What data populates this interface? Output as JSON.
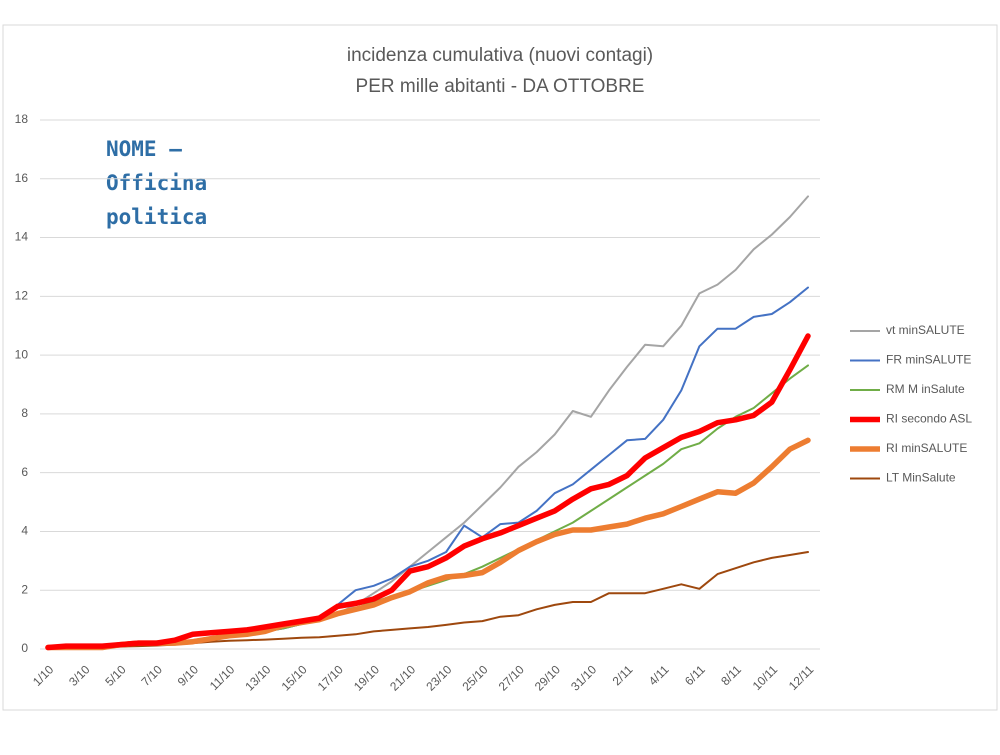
{
  "chart_data": {
    "type": "line",
    "title": [
      "incidenza cumulativa (nuovi contagi)",
      "PER mille  abitanti - DA OTTOBRE"
    ],
    "annotation": [
      "NOME  –",
      "Officina",
      "politica"
    ],
    "categories": [
      "1/10",
      null,
      "3/10",
      null,
      "5/10",
      null,
      "7/10",
      null,
      "9/10",
      null,
      "11/10",
      null,
      "13/10",
      null,
      "15/10",
      null,
      "17/10",
      null,
      "19/10",
      null,
      "21/10",
      null,
      "23/10",
      null,
      "25/10",
      null,
      "27/10",
      null,
      "29/10",
      null,
      "31/10",
      null,
      "2/11",
      null,
      "4/11",
      null,
      "6/11",
      null,
      "8/11",
      null,
      "10/11",
      null,
      "12/11"
    ],
    "series": [
      {
        "name": "vt minSALUTE",
        "color": "#a5a5a5",
        "values": [
          0.05,
          0.1,
          0.1,
          0.1,
          0.15,
          0.2,
          0.2,
          0.25,
          0.3,
          0.4,
          0.45,
          0.5,
          0.6,
          0.7,
          0.85,
          1.0,
          1.2,
          1.5,
          1.9,
          2.3,
          2.8,
          3.3,
          3.8,
          4.3,
          4.9,
          5.5,
          6.2,
          6.7,
          7.3,
          8.1,
          7.9,
          8.8,
          9.6,
          10.35,
          10.3,
          11.0,
          12.1,
          12.4,
          12.9,
          13.6,
          14.1,
          14.7,
          15.4
        ]
      },
      {
        "name": "FR minSALUTE",
        "color": "#4472c4",
        "values": [
          0.05,
          0.1,
          0.1,
          0.1,
          0.15,
          0.2,
          0.2,
          0.25,
          0.3,
          0.4,
          0.45,
          0.5,
          0.6,
          0.7,
          0.85,
          1.0,
          1.5,
          2.0,
          2.15,
          2.4,
          2.8,
          3.0,
          3.3,
          4.2,
          3.8,
          4.25,
          4.3,
          4.7,
          5.3,
          5.6,
          6.1,
          6.6,
          7.1,
          7.15,
          7.8,
          8.8,
          10.3,
          10.9,
          10.9,
          11.3,
          11.4,
          11.8,
          12.3
        ]
      },
      {
        "name": "RM M inSalute",
        "color": "#70ad47",
        "values": [
          0.05,
          0.1,
          0.1,
          0.1,
          0.15,
          0.2,
          0.2,
          0.25,
          0.3,
          0.4,
          0.45,
          0.5,
          0.6,
          0.7,
          0.85,
          1.0,
          1.4,
          1.5,
          1.6,
          1.8,
          1.95,
          2.15,
          2.35,
          2.55,
          2.8,
          3.1,
          3.4,
          3.7,
          4.0,
          4.3,
          4.7,
          5.1,
          5.5,
          5.9,
          6.3,
          6.8,
          7.0,
          7.5,
          7.9,
          8.2,
          8.7,
          9.2,
          9.65
        ]
      },
      {
        "name": "RI secondo ASL",
        "color": "#ff0000",
        "values": [
          0.05,
          0.1,
          0.1,
          0.1,
          0.15,
          0.2,
          0.2,
          0.3,
          0.5,
          0.55,
          0.6,
          0.65,
          0.75,
          0.85,
          0.95,
          1.05,
          1.45,
          1.55,
          1.7,
          2.0,
          2.65,
          2.8,
          3.1,
          3.5,
          3.75,
          3.95,
          4.2,
          4.45,
          4.7,
          5.1,
          5.45,
          5.6,
          5.9,
          6.5,
          6.85,
          7.2,
          7.4,
          7.7,
          7.8,
          7.95,
          8.4,
          9.5,
          10.65
        ]
      },
      {
        "name": "RI minSALUTE",
        "color": "#ed7d31",
        "values": [
          0.05,
          0.05,
          0.05,
          0.05,
          0.15,
          0.2,
          0.2,
          0.2,
          0.25,
          0.35,
          0.45,
          0.5,
          0.6,
          0.8,
          0.9,
          1.0,
          1.2,
          1.35,
          1.5,
          1.75,
          1.95,
          2.25,
          2.45,
          2.5,
          2.6,
          2.95,
          3.35,
          3.65,
          3.9,
          4.05,
          4.05,
          4.15,
          4.25,
          4.45,
          4.6,
          4.85,
          5.1,
          5.35,
          5.3,
          5.65,
          6.2,
          6.8,
          7.1
        ]
      },
      {
        "name": "LT MinSalute",
        "color": "#9e480e",
        "values": [
          0.02,
          0.03,
          0.05,
          0.05,
          0.08,
          0.1,
          0.12,
          0.15,
          0.2,
          0.25,
          0.28,
          0.3,
          0.32,
          0.35,
          0.38,
          0.4,
          0.45,
          0.5,
          0.6,
          0.65,
          0.7,
          0.75,
          0.82,
          0.9,
          0.95,
          1.1,
          1.15,
          1.35,
          1.5,
          1.6,
          1.6,
          1.9,
          1.9,
          1.9,
          2.05,
          2.2,
          2.05,
          2.55,
          2.75,
          2.95,
          3.1,
          3.2,
          3.3
        ]
      }
    ],
    "ylim": [
      0,
      18
    ],
    "yticks": [
      0,
      2,
      4,
      6,
      8,
      10,
      12,
      14,
      16,
      18
    ],
    "grid": true,
    "legend": "right"
  }
}
